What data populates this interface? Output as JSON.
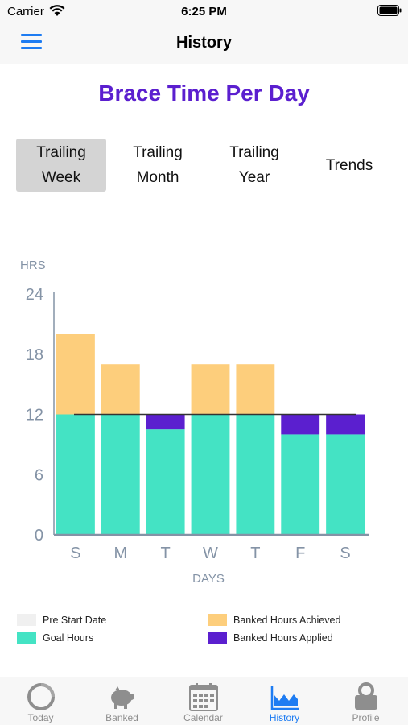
{
  "status": {
    "carrier": "Carrier",
    "time": "6:25 PM"
  },
  "nav": {
    "title": "History"
  },
  "page_title": "Brace Time Per Day",
  "segments": [
    {
      "label": "Trailing\nWeek",
      "active": true
    },
    {
      "label": "Trailing\nMonth",
      "active": false
    },
    {
      "label": "Trailing\nYear",
      "active": false
    },
    {
      "label": "Trends",
      "active": false
    }
  ],
  "colors": {
    "goal": "#44e3c4",
    "banked_achieved": "#fdce7c",
    "banked_applied": "#5b1fcf",
    "pre_start": "#f0f0f0",
    "axis": "#8493a6",
    "accent": "#1e7cf2",
    "title": "#5b1fcf"
  },
  "chart_data": {
    "type": "bar",
    "stacked": true,
    "categories": [
      "S",
      "M",
      "T",
      "W",
      "T",
      "F",
      "S"
    ],
    "series": [
      {
        "name": "Goal Hours",
        "values": [
          12,
          12,
          10.5,
          12,
          12,
          10,
          10
        ]
      },
      {
        "name": "Banked Hours Achieved",
        "values": [
          8,
          5,
          0,
          5,
          5,
          0,
          0
        ]
      },
      {
        "name": "Banked Hours Applied",
        "values": [
          0,
          0,
          1.5,
          0,
          0,
          2,
          2
        ]
      }
    ],
    "goal_line": 12,
    "ylabel": "HRS",
    "xlabel": "DAYS",
    "ylim": [
      0,
      24
    ],
    "yticks": [
      "0",
      "6",
      "12",
      "18",
      "24"
    ],
    "ytick_values": [
      0,
      6,
      12,
      18,
      24
    ]
  },
  "legend": {
    "pre_start": "Pre Start Date",
    "goal": "Goal Hours",
    "banked_achieved": "Banked Hours Achieved",
    "banked_applied": "Banked Hours Applied"
  },
  "tabs": [
    {
      "label": "Today",
      "icon": "today-ring-icon",
      "active": false
    },
    {
      "label": "Banked",
      "icon": "piggy-bank-icon",
      "active": false
    },
    {
      "label": "Calendar",
      "icon": "calendar-icon",
      "active": false
    },
    {
      "label": "History",
      "icon": "history-chart-icon",
      "active": true
    },
    {
      "label": "Profile",
      "icon": "profile-lock-icon",
      "active": false
    }
  ]
}
